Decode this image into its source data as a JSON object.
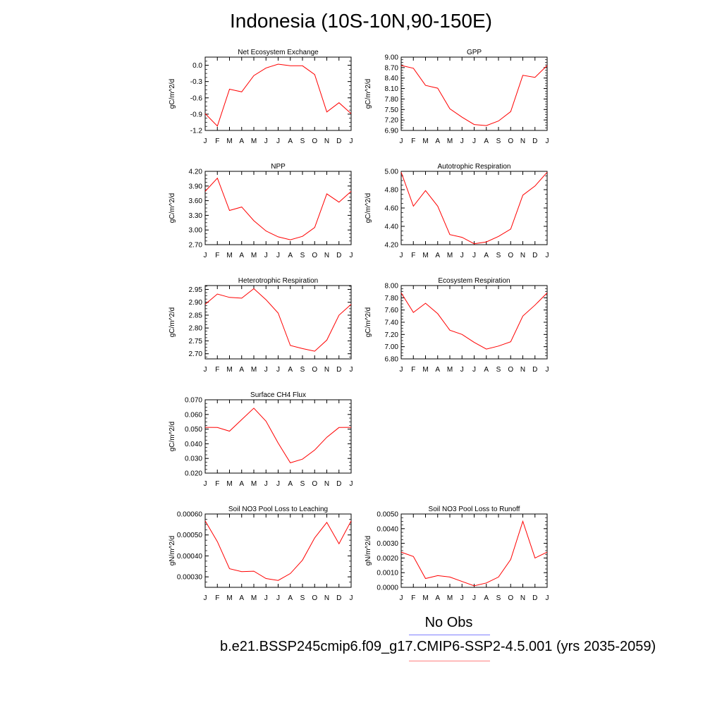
{
  "title": "Indonesia (10S-10N,90-150E)",
  "legend": {
    "obs_label": "No Obs",
    "case_label": "b.e21.BSSP245cmip6.f09_g17.CMIP6-SSP2-4.5.001 (yrs 2035-2059)",
    "obs_color": "#8080ff",
    "case_color": "#ff8080"
  },
  "series_color": "#ff0000",
  "chart_data": [
    {
      "type": "line",
      "title": "Net Ecosystem Exchange",
      "ylabel": "gC/m^2/d",
      "categories": [
        "J",
        "F",
        "M",
        "A",
        "M",
        "J",
        "J",
        "A",
        "S",
        "O",
        "N",
        "D",
        "J"
      ],
      "values": [
        -0.89,
        -1.12,
        -0.44,
        -0.49,
        -0.19,
        -0.05,
        0.02,
        -0.01,
        -0.01,
        -0.17,
        -0.86,
        -0.69,
        -0.89
      ],
      "ylim": [
        -1.2,
        0.15
      ],
      "yticks": [
        "0.0",
        "-0.3",
        "-0.6",
        "-0.9",
        "-1.2"
      ],
      "ytick_values": [
        0.0,
        -0.3,
        -0.6,
        -0.9,
        -1.2
      ]
    },
    {
      "type": "line",
      "title": "GPP",
      "ylabel": "gC/m^2/d",
      "categories": [
        "J",
        "F",
        "M",
        "A",
        "M",
        "J",
        "J",
        "A",
        "S",
        "O",
        "N",
        "D",
        "J"
      ],
      "values": [
        8.76,
        8.68,
        8.19,
        8.11,
        7.52,
        7.28,
        7.07,
        7.04,
        7.17,
        7.44,
        8.48,
        8.42,
        8.76
      ],
      "ylim": [
        6.9,
        9.0
      ],
      "yticks": [
        "9.00",
        "8.70",
        "8.40",
        "8.10",
        "7.80",
        "7.50",
        "7.20",
        "6.90"
      ],
      "ytick_values": [
        9.0,
        8.7,
        8.4,
        8.1,
        7.8,
        7.5,
        7.2,
        6.9
      ]
    },
    {
      "type": "line",
      "title": "NPP",
      "ylabel": "gC/m^2/d",
      "categories": [
        "J",
        "F",
        "M",
        "A",
        "M",
        "J",
        "J",
        "A",
        "S",
        "O",
        "N",
        "D",
        "J"
      ],
      "values": [
        3.79,
        4.06,
        3.4,
        3.47,
        3.19,
        2.98,
        2.86,
        2.8,
        2.87,
        3.05,
        3.74,
        3.57,
        3.79
      ],
      "ylim": [
        2.7,
        4.2
      ],
      "yticks": [
        "4.20",
        "3.90",
        "3.60",
        "3.30",
        "3.00",
        "2.70"
      ],
      "ytick_values": [
        4.2,
        3.9,
        3.6,
        3.3,
        3.0,
        2.7
      ]
    },
    {
      "type": "line",
      "title": "Autotrophic Respiration",
      "ylabel": "gC/m^2/d",
      "categories": [
        "J",
        "F",
        "M",
        "A",
        "M",
        "J",
        "J",
        "A",
        "S",
        "O",
        "N",
        "D",
        "J"
      ],
      "values": [
        4.99,
        4.62,
        4.79,
        4.62,
        4.31,
        4.28,
        4.21,
        4.23,
        4.29,
        4.37,
        4.74,
        4.84,
        4.99
      ],
      "ylim": [
        4.2,
        5.0
      ],
      "yticks": [
        "5.00",
        "4.80",
        "4.60",
        "4.40",
        "4.20"
      ],
      "ytick_values": [
        5.0,
        4.8,
        4.6,
        4.4,
        4.2
      ]
    },
    {
      "type": "line",
      "title": "Heterotrophic Respiration",
      "ylabel": "gC/m^2/d",
      "categories": [
        "J",
        "F",
        "M",
        "A",
        "M",
        "J",
        "J",
        "A",
        "S",
        "O",
        "N",
        "D",
        "J"
      ],
      "values": [
        2.892,
        2.932,
        2.919,
        2.916,
        2.953,
        2.91,
        2.858,
        2.732,
        2.72,
        2.71,
        2.753,
        2.85,
        2.892
      ],
      "ylim": [
        2.68,
        2.965
      ],
      "yticks": [
        "2.95",
        "2.90",
        "2.85",
        "2.80",
        "2.75",
        "2.70"
      ],
      "ytick_values": [
        2.95,
        2.9,
        2.85,
        2.8,
        2.75,
        2.7
      ]
    },
    {
      "type": "line",
      "title": "Ecosystem Respiration",
      "ylabel": "gC/m^2/d",
      "categories": [
        "J",
        "F",
        "M",
        "A",
        "M",
        "J",
        "J",
        "A",
        "S",
        "O",
        "N",
        "D",
        "J"
      ],
      "values": [
        7.88,
        7.56,
        7.71,
        7.54,
        7.27,
        7.2,
        7.07,
        6.96,
        7.01,
        7.08,
        7.5,
        7.68,
        7.88
      ],
      "ylim": [
        6.8,
        8.0
      ],
      "yticks": [
        "8.00",
        "7.80",
        "7.60",
        "7.40",
        "7.20",
        "7.00",
        "6.80"
      ],
      "ytick_values": [
        8.0,
        7.8,
        7.6,
        7.4,
        7.2,
        7.0,
        6.8
      ]
    },
    {
      "type": "line",
      "title": "Surface CH4 Flux",
      "ylabel": "gC/m^2/d",
      "categories": [
        "J",
        "F",
        "M",
        "A",
        "M",
        "J",
        "J",
        "A",
        "S",
        "O",
        "N",
        "D",
        "J"
      ],
      "values": [
        0.0512,
        0.0511,
        0.0486,
        0.0565,
        0.0643,
        0.0554,
        0.0405,
        0.027,
        0.0295,
        0.0357,
        0.0444,
        0.0511,
        0.0512
      ],
      "ylim": [
        0.02,
        0.07
      ],
      "yticks": [
        "0.070",
        "0.060",
        "0.050",
        "0.040",
        "0.030",
        "0.020"
      ],
      "ytick_values": [
        0.07,
        0.06,
        0.05,
        0.04,
        0.03,
        0.02
      ]
    },
    {
      "type": "line",
      "title": "Soil NO3 Pool Loss to Leaching",
      "ylabel": "gN/m^2/d",
      "categories": [
        "J",
        "F",
        "M",
        "A",
        "M",
        "J",
        "J",
        "A",
        "S",
        "O",
        "N",
        "D",
        "J"
      ],
      "values": [
        0.000567,
        0.000468,
        0.000339,
        0.000325,
        0.000327,
        0.000292,
        0.000283,
        0.000316,
        0.00038,
        0.000486,
        0.00056,
        0.000458,
        0.000567
      ],
      "ylim": [
        0.00025,
        0.0006
      ],
      "yticks": [
        "0.00060",
        "0.00050",
        "0.00040",
        "0.00030"
      ],
      "ytick_values": [
        0.0006,
        0.0005,
        0.0004,
        0.0003
      ]
    },
    {
      "type": "line",
      "title": "Soil NO3 Pool Loss to Runoff",
      "ylabel": "gN/m^2/d",
      "categories": [
        "J",
        "F",
        "M",
        "A",
        "M",
        "J",
        "J",
        "A",
        "S",
        "O",
        "N",
        "D",
        "J"
      ],
      "values": [
        0.0024,
        0.0021,
        0.0006,
        0.0008,
        0.0007,
        0.0004,
        0.0001,
        0.0003,
        0.0007,
        0.0019,
        0.0045,
        0.002,
        0.0024
      ],
      "ylim": [
        0.0,
        0.005
      ],
      "yticks": [
        "0.0050",
        "0.0040",
        "0.0030",
        "0.0020",
        "0.0010",
        "0.0000"
      ],
      "ytick_values": [
        0.005,
        0.004,
        0.003,
        0.002,
        0.001,
        0.0
      ]
    }
  ]
}
